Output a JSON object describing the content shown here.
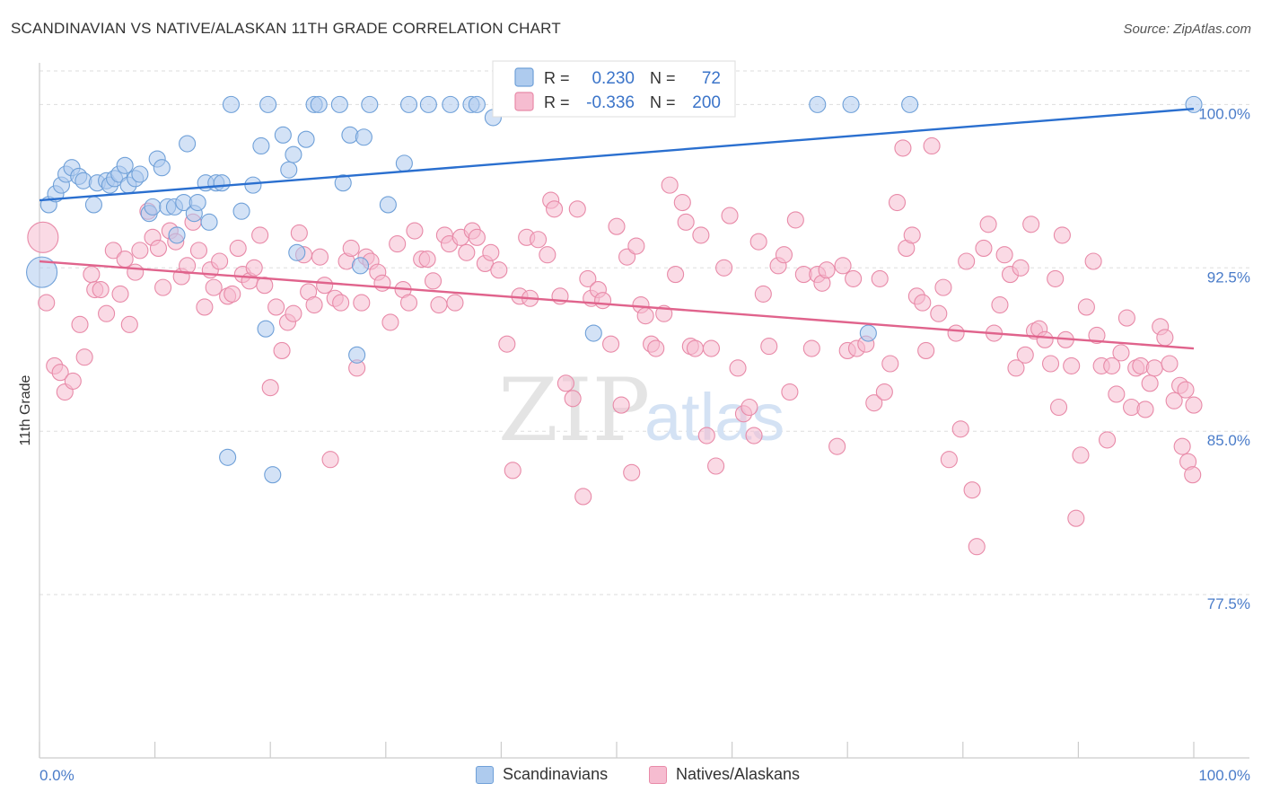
{
  "header": {
    "title": "SCANDINAVIAN VS NATIVE/ALASKAN 11TH GRADE CORRELATION CHART",
    "source": "Source: ZipAtlas.com"
  },
  "colors": {
    "blue": "#6fa0d8",
    "blue_fill": "#aecbee",
    "blue_line": "#2a6fcf",
    "pink": "#e88aa8",
    "pink_fill": "#f6bcd0",
    "pink_line": "#e0638c",
    "axis_label": "#4a7cc9",
    "grid": "#dddddd"
  },
  "legend_top": {
    "rows": [
      {
        "r_label": "R =",
        "r_value": "0.230",
        "n_label": "N =",
        "n_value": "72"
      },
      {
        "r_label": "R =",
        "r_value": "-0.336",
        "n_label": "N =",
        "n_value": "200"
      }
    ]
  },
  "legend_bottom": {
    "items": [
      {
        "label": "Scandinavians"
      },
      {
        "label": "Natives/Alaskans"
      }
    ]
  },
  "watermark": {
    "zip": "ZIP",
    "atlas": "atlas"
  },
  "chart_data": {
    "type": "scatter",
    "title": "SCANDINAVIAN VS NATIVE/ALASKAN 11TH GRADE CORRELATION CHART",
    "xlabel": "",
    "ylabel": "11th Grade",
    "xlim": [
      0,
      100
    ],
    "ylim": [
      70.0,
      101.5
    ],
    "x_tick_labels": [
      "0.0%",
      "100.0%"
    ],
    "y_ticks": [
      77.5,
      85.0,
      92.5,
      100.0
    ],
    "y_tick_labels": [
      "77.5%",
      "85.0%",
      "92.5%",
      "100.0%"
    ],
    "grid": true,
    "legend_position": "top-center",
    "series": [
      {
        "name": "Scandinavians",
        "R": 0.23,
        "N": 72,
        "trend": [
          [
            0,
            95.6
          ],
          [
            100,
            99.8
          ]
        ],
        "points": [
          [
            0.2,
            92.3
          ],
          [
            0.8,
            95.4
          ],
          [
            1.4,
            95.9
          ],
          [
            1.9,
            96.3
          ],
          [
            2.3,
            96.8
          ],
          [
            2.8,
            97.1
          ],
          [
            3.4,
            96.7
          ],
          [
            3.8,
            96.5
          ],
          [
            4.7,
            95.4
          ],
          [
            5.0,
            96.4
          ],
          [
            5.8,
            96.5
          ],
          [
            6.1,
            96.3
          ],
          [
            6.5,
            96.6
          ],
          [
            6.9,
            96.8
          ],
          [
            7.4,
            97.2
          ],
          [
            7.7,
            96.3
          ],
          [
            8.3,
            96.6
          ],
          [
            8.7,
            96.8
          ],
          [
            9.5,
            95.0
          ],
          [
            9.8,
            95.3
          ],
          [
            10.2,
            97.5
          ],
          [
            10.6,
            97.1
          ],
          [
            11.1,
            95.3
          ],
          [
            11.7,
            95.3
          ],
          [
            11.9,
            94.0
          ],
          [
            12.5,
            95.5
          ],
          [
            12.8,
            98.2
          ],
          [
            13.4,
            95.0
          ],
          [
            13.7,
            95.5
          ],
          [
            14.4,
            96.4
          ],
          [
            14.7,
            94.6
          ],
          [
            15.3,
            96.4
          ],
          [
            15.8,
            96.4
          ],
          [
            16.3,
            83.8
          ],
          [
            16.6,
            100.0
          ],
          [
            17.5,
            95.1
          ],
          [
            18.5,
            96.3
          ],
          [
            19.2,
            98.1
          ],
          [
            19.6,
            89.7
          ],
          [
            20.2,
            83.0
          ],
          [
            19.8,
            100.0
          ],
          [
            21.1,
            98.6
          ],
          [
            21.6,
            97.0
          ],
          [
            22.0,
            97.7
          ],
          [
            22.3,
            93.2
          ],
          [
            23.1,
            98.4
          ],
          [
            23.8,
            100.0
          ],
          [
            24.2,
            100.0
          ],
          [
            26.0,
            100.0
          ],
          [
            26.3,
            96.4
          ],
          [
            26.9,
            98.6
          ],
          [
            27.5,
            88.5
          ],
          [
            27.8,
            92.6
          ],
          [
            28.1,
            98.5
          ],
          [
            28.6,
            100.0
          ],
          [
            30.2,
            95.4
          ],
          [
            31.6,
            97.3
          ],
          [
            32.0,
            100.0
          ],
          [
            33.7,
            100.0
          ],
          [
            35.6,
            100.0
          ],
          [
            37.4,
            100.0
          ],
          [
            37.9,
            100.0
          ],
          [
            39.3,
            99.4
          ],
          [
            41.8,
            100.0
          ],
          [
            44.2,
            100.0
          ],
          [
            48.0,
            89.5
          ],
          [
            53.1,
            100.0
          ],
          [
            67.4,
            100.0
          ],
          [
            70.3,
            100.0
          ],
          [
            71.8,
            89.5
          ],
          [
            75.4,
            100.0
          ],
          [
            100.0,
            100.0
          ]
        ]
      },
      {
        "name": "Natives/Alaskans",
        "R": -0.336,
        "N": 200,
        "trend": [
          [
            0,
            92.8
          ],
          [
            100,
            88.8
          ]
        ],
        "points": [
          [
            0.3,
            93.9
          ],
          [
            0.6,
            90.9
          ],
          [
            1.3,
            88.0
          ],
          [
            1.8,
            87.7
          ],
          [
            2.2,
            86.8
          ],
          [
            2.9,
            87.3
          ],
          [
            3.5,
            89.9
          ],
          [
            3.9,
            88.4
          ],
          [
            4.5,
            92.2
          ],
          [
            4.8,
            91.5
          ],
          [
            5.3,
            91.5
          ],
          [
            5.8,
            90.4
          ],
          [
            6.4,
            93.3
          ],
          [
            7.0,
            91.3
          ],
          [
            7.4,
            92.9
          ],
          [
            7.8,
            89.9
          ],
          [
            8.3,
            92.3
          ],
          [
            8.7,
            93.3
          ],
          [
            9.4,
            95.1
          ],
          [
            9.8,
            93.9
          ],
          [
            10.3,
            93.4
          ],
          [
            10.7,
            91.6
          ],
          [
            11.3,
            94.2
          ],
          [
            11.8,
            93.7
          ],
          [
            12.3,
            92.1
          ],
          [
            12.8,
            92.6
          ],
          [
            13.3,
            94.6
          ],
          [
            13.8,
            93.3
          ],
          [
            14.3,
            90.7
          ],
          [
            14.8,
            92.4
          ],
          [
            15.1,
            91.6
          ],
          [
            15.6,
            92.8
          ],
          [
            16.3,
            91.2
          ],
          [
            16.7,
            91.3
          ],
          [
            17.2,
            93.4
          ],
          [
            17.6,
            92.2
          ],
          [
            18.2,
            91.9
          ],
          [
            18.6,
            92.5
          ],
          [
            19.1,
            94.0
          ],
          [
            19.5,
            91.7
          ],
          [
            20.0,
            87.0
          ],
          [
            20.5,
            90.7
          ],
          [
            21.0,
            88.7
          ],
          [
            21.5,
            90.0
          ],
          [
            22.0,
            90.4
          ],
          [
            22.5,
            94.1
          ],
          [
            22.9,
            93.1
          ],
          [
            23.3,
            91.4
          ],
          [
            23.8,
            90.8
          ],
          [
            24.3,
            93.0
          ],
          [
            24.7,
            91.7
          ],
          [
            25.2,
            83.7
          ],
          [
            25.6,
            91.1
          ],
          [
            26.1,
            90.9
          ],
          [
            26.6,
            92.8
          ],
          [
            27.0,
            93.4
          ],
          [
            27.5,
            87.9
          ],
          [
            27.9,
            90.9
          ],
          [
            28.3,
            93.0
          ],
          [
            28.7,
            92.8
          ],
          [
            29.3,
            92.3
          ],
          [
            29.7,
            91.8
          ],
          [
            30.4,
            90.0
          ],
          [
            31.0,
            93.6
          ],
          [
            31.5,
            91.5
          ],
          [
            32.0,
            90.9
          ],
          [
            32.5,
            94.2
          ],
          [
            33.1,
            92.9
          ],
          [
            33.6,
            92.9
          ],
          [
            34.1,
            91.9
          ],
          [
            34.6,
            90.8
          ],
          [
            35.1,
            94.0
          ],
          [
            35.5,
            93.6
          ],
          [
            36.0,
            90.9
          ],
          [
            36.5,
            93.9
          ],
          [
            37.0,
            93.2
          ],
          [
            37.5,
            94.2
          ],
          [
            37.9,
            93.9
          ],
          [
            38.6,
            92.7
          ],
          [
            39.1,
            93.2
          ],
          [
            39.8,
            92.4
          ],
          [
            40.5,
            89.0
          ],
          [
            41.0,
            83.2
          ],
          [
            41.6,
            91.2
          ],
          [
            42.2,
            93.9
          ],
          [
            42.5,
            91.1
          ],
          [
            43.2,
            93.8
          ],
          [
            44.0,
            93.1
          ],
          [
            44.3,
            95.6
          ],
          [
            44.6,
            95.2
          ],
          [
            45.1,
            91.2
          ],
          [
            45.6,
            87.2
          ],
          [
            46.2,
            86.5
          ],
          [
            46.6,
            95.2
          ],
          [
            47.1,
            82.0
          ],
          [
            47.5,
            92.0
          ],
          [
            47.8,
            91.1
          ],
          [
            48.4,
            91.5
          ],
          [
            48.8,
            91.0
          ],
          [
            49.5,
            89.0
          ],
          [
            50.0,
            94.4
          ],
          [
            50.4,
            86.2
          ],
          [
            50.9,
            93.0
          ],
          [
            51.3,
            83.1
          ],
          [
            51.7,
            93.5
          ],
          [
            52.1,
            90.8
          ],
          [
            52.5,
            90.3
          ],
          [
            53.0,
            89.0
          ],
          [
            53.4,
            88.8
          ],
          [
            54.1,
            90.4
          ],
          [
            54.6,
            96.3
          ],
          [
            55.1,
            92.2
          ],
          [
            55.7,
            95.5
          ],
          [
            56.0,
            94.6
          ],
          [
            56.4,
            88.9
          ],
          [
            56.8,
            88.8
          ],
          [
            57.3,
            94.0
          ],
          [
            57.8,
            84.8
          ],
          [
            58.2,
            88.8
          ],
          [
            58.6,
            83.4
          ],
          [
            59.3,
            92.5
          ],
          [
            59.8,
            94.9
          ],
          [
            60.5,
            87.9
          ],
          [
            61.0,
            85.8
          ],
          [
            61.5,
            86.1
          ],
          [
            61.9,
            84.8
          ],
          [
            62.3,
            93.7
          ],
          [
            62.7,
            91.3
          ],
          [
            63.2,
            88.9
          ],
          [
            64.0,
            92.6
          ],
          [
            64.5,
            93.1
          ],
          [
            65.0,
            86.8
          ],
          [
            65.5,
            94.7
          ],
          [
            66.2,
            92.2
          ],
          [
            66.9,
            88.8
          ],
          [
            67.4,
            92.2
          ],
          [
            67.8,
            91.8
          ],
          [
            68.2,
            92.4
          ],
          [
            69.1,
            84.3
          ],
          [
            69.6,
            92.6
          ],
          [
            70.0,
            88.7
          ],
          [
            70.5,
            92.0
          ],
          [
            70.8,
            88.8
          ],
          [
            71.6,
            89.0
          ],
          [
            72.3,
            86.3
          ],
          [
            72.8,
            92.0
          ],
          [
            73.2,
            86.8
          ],
          [
            73.7,
            88.1
          ],
          [
            74.3,
            95.5
          ],
          [
            74.8,
            98.0
          ],
          [
            75.1,
            93.4
          ],
          [
            75.6,
            94.0
          ],
          [
            76.0,
            91.2
          ],
          [
            76.5,
            90.9
          ],
          [
            76.8,
            88.7
          ],
          [
            77.3,
            98.1
          ],
          [
            77.9,
            90.4
          ],
          [
            78.3,
            91.6
          ],
          [
            78.8,
            83.7
          ],
          [
            79.4,
            89.5
          ],
          [
            79.8,
            85.1
          ],
          [
            80.3,
            92.8
          ],
          [
            80.8,
            82.3
          ],
          [
            81.2,
            79.7
          ],
          [
            81.8,
            93.4
          ],
          [
            82.2,
            94.5
          ],
          [
            82.7,
            89.5
          ],
          [
            83.2,
            90.8
          ],
          [
            83.6,
            93.1
          ],
          [
            84.1,
            92.2
          ],
          [
            84.6,
            87.9
          ],
          [
            85.0,
            92.5
          ],
          [
            85.4,
            88.5
          ],
          [
            85.9,
            94.5
          ],
          [
            86.2,
            89.6
          ],
          [
            86.6,
            89.7
          ],
          [
            87.1,
            89.2
          ],
          [
            87.6,
            88.1
          ],
          [
            88.0,
            92.0
          ],
          [
            88.3,
            86.1
          ],
          [
            88.6,
            94.0
          ],
          [
            88.9,
            89.2
          ],
          [
            89.4,
            88.0
          ],
          [
            89.8,
            81.0
          ],
          [
            90.2,
            83.9
          ],
          [
            90.7,
            90.7
          ],
          [
            91.3,
            92.8
          ],
          [
            91.6,
            89.4
          ],
          [
            92.0,
            88.0
          ],
          [
            92.5,
            84.6
          ],
          [
            92.9,
            88.0
          ],
          [
            93.3,
            86.7
          ],
          [
            93.7,
            88.6
          ],
          [
            94.2,
            90.2
          ],
          [
            94.6,
            86.1
          ],
          [
            95.0,
            87.9
          ],
          [
            95.4,
            88.0
          ],
          [
            95.8,
            86.0
          ],
          [
            96.2,
            87.2
          ],
          [
            96.6,
            87.9
          ],
          [
            97.1,
            89.8
          ],
          [
            97.5,
            89.3
          ],
          [
            97.9,
            88.1
          ],
          [
            98.3,
            86.4
          ],
          [
            98.8,
            87.1
          ],
          [
            99.3,
            86.9
          ],
          [
            99.0,
            84.3
          ],
          [
            99.5,
            83.6
          ],
          [
            99.9,
            83.0
          ],
          [
            100.0,
            86.2
          ]
        ]
      }
    ]
  }
}
